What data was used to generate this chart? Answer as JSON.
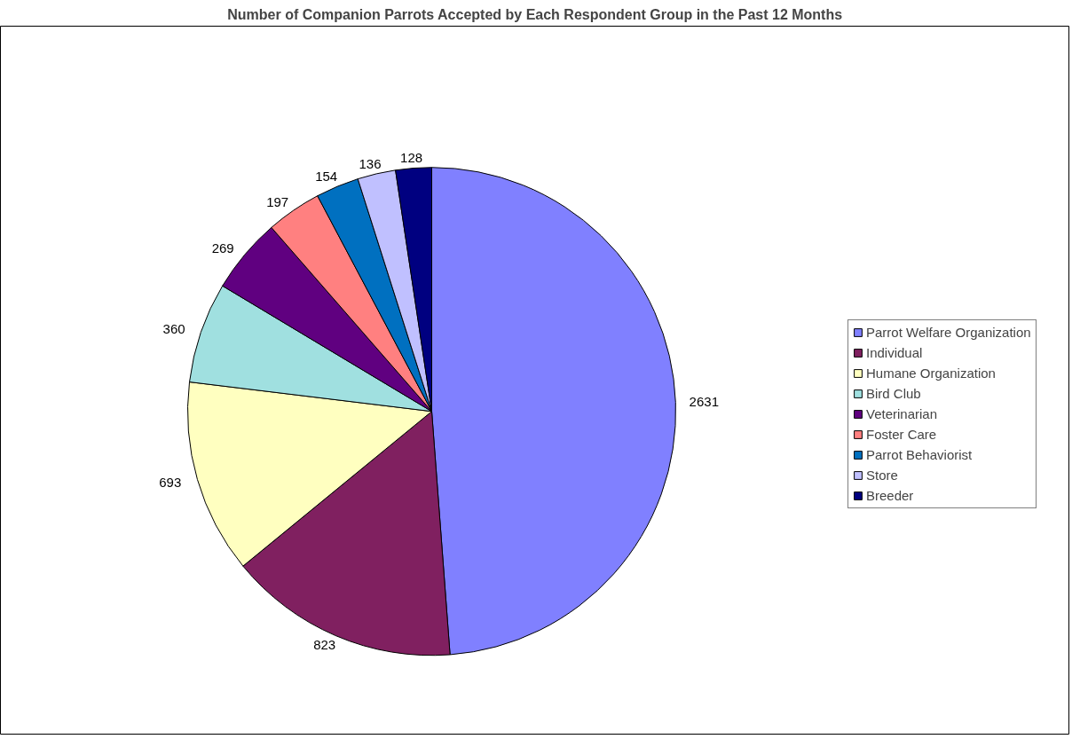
{
  "chart_data": {
    "type": "pie",
    "title": "Number of Companion Parrots Accepted by Each Respondent Group in the Past 12 Months",
    "categories": [
      "Parrot Welfare Organization",
      "Individual",
      "Humane Organization",
      "Bird Club",
      "Veterinarian",
      "Foster Care",
      "Parrot Behaviorist",
      "Store",
      "Breeder"
    ],
    "values": [
      2631,
      823,
      693,
      360,
      269,
      197,
      154,
      136,
      128
    ],
    "colors": [
      "#8080ff",
      "#802060",
      "#ffffc0",
      "#a0e0e0",
      "#600080",
      "#ff8080",
      "#0070c0",
      "#c0c0ff",
      "#000080"
    ],
    "data_labels": true,
    "legend": "right"
  }
}
